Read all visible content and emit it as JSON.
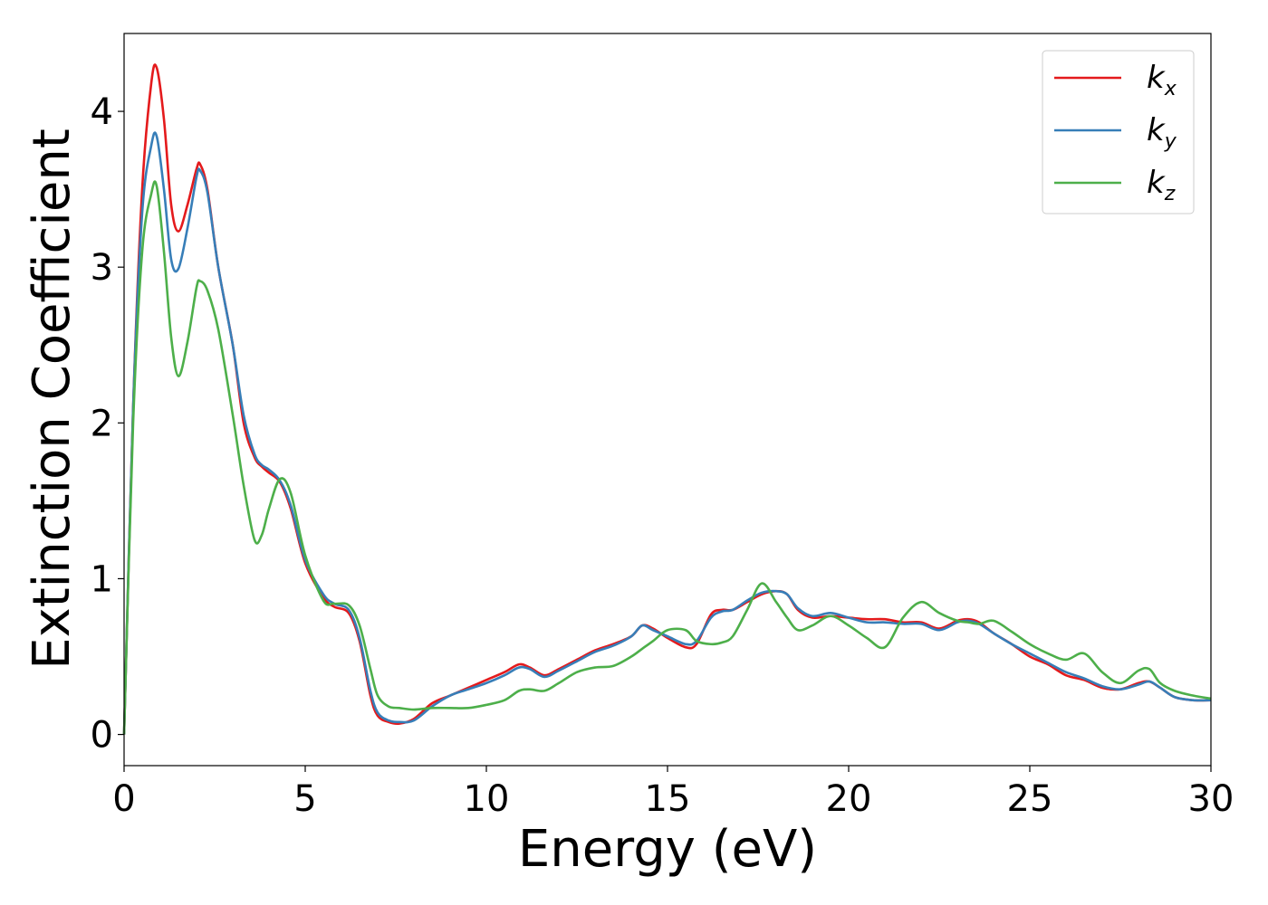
{
  "chart_data": {
    "type": "line",
    "title": "",
    "xlabel": "Energy (eV)",
    "ylabel": "Extinction Coefficient",
    "xlim": [
      0,
      30
    ],
    "ylim": [
      -0.2,
      4.5
    ],
    "xticks": [
      0,
      5,
      10,
      15,
      20,
      25,
      30
    ],
    "yticks": [
      0,
      1,
      2,
      3,
      4
    ],
    "grid": false,
    "legend_position": "top-right",
    "series": [
      {
        "name": "k",
        "subscript": "x",
        "color": "#e41a1c",
        "x": [
          0,
          0.25,
          0.5,
          0.75,
          0.9,
          1.1,
          1.3,
          1.5,
          1.75,
          2.0,
          2.1,
          2.3,
          2.6,
          3.0,
          3.3,
          3.6,
          3.8,
          4.0,
          4.3,
          4.6,
          5.0,
          5.5,
          5.8,
          6.2,
          6.5,
          6.8,
          7.0,
          7.3,
          7.6,
          8.0,
          8.5,
          9.0,
          9.5,
          10.0,
          10.5,
          10.9,
          11.2,
          11.6,
          12.0,
          12.5,
          13.0,
          13.5,
          14.0,
          14.3,
          14.6,
          15.0,
          15.5,
          15.8,
          16.2,
          16.5,
          16.8,
          17.2,
          17.6,
          18.0,
          18.3,
          18.6,
          19.0,
          19.5,
          20.0,
          20.5,
          21.0,
          21.5,
          22.0,
          22.5,
          23.0,
          23.3,
          23.6,
          24.0,
          24.5,
          25.0,
          25.5,
          26.0,
          26.5,
          27.0,
          27.5,
          28.0,
          28.3,
          28.6,
          29.0,
          29.5,
          30.0
        ],
        "y": [
          0.0,
          2.1,
          3.5,
          4.18,
          4.28,
          3.95,
          3.4,
          3.23,
          3.4,
          3.63,
          3.66,
          3.5,
          3.0,
          2.5,
          2.0,
          1.78,
          1.72,
          1.68,
          1.62,
          1.45,
          1.1,
          0.88,
          0.82,
          0.78,
          0.6,
          0.25,
          0.12,
          0.08,
          0.07,
          0.1,
          0.2,
          0.25,
          0.3,
          0.35,
          0.4,
          0.45,
          0.43,
          0.38,
          0.42,
          0.48,
          0.54,
          0.58,
          0.63,
          0.7,
          0.68,
          0.62,
          0.56,
          0.58,
          0.77,
          0.8,
          0.8,
          0.85,
          0.9,
          0.92,
          0.9,
          0.8,
          0.75,
          0.76,
          0.75,
          0.74,
          0.74,
          0.72,
          0.72,
          0.68,
          0.73,
          0.74,
          0.72,
          0.65,
          0.58,
          0.5,
          0.45,
          0.38,
          0.35,
          0.3,
          0.29,
          0.33,
          0.34,
          0.3,
          0.24,
          0.22,
          0.22
        ]
      },
      {
        "name": "k",
        "subscript": "y",
        "color": "#377eb8",
        "x": [
          0,
          0.25,
          0.5,
          0.75,
          0.9,
          1.1,
          1.3,
          1.5,
          1.75,
          2.0,
          2.1,
          2.3,
          2.6,
          3.0,
          3.3,
          3.6,
          3.8,
          4.0,
          4.3,
          4.6,
          5.0,
          5.5,
          5.8,
          6.2,
          6.5,
          6.8,
          7.0,
          7.3,
          7.6,
          8.0,
          8.5,
          9.0,
          9.5,
          10.0,
          10.5,
          10.9,
          11.2,
          11.6,
          12.0,
          12.5,
          13.0,
          13.5,
          14.0,
          14.3,
          14.6,
          15.0,
          15.5,
          15.8,
          16.2,
          16.5,
          16.8,
          17.2,
          17.6,
          18.0,
          18.3,
          18.6,
          19.0,
          19.5,
          20.0,
          20.5,
          21.0,
          21.5,
          22.0,
          22.5,
          23.0,
          23.3,
          23.6,
          24.0,
          24.5,
          25.0,
          25.5,
          26.0,
          26.5,
          27.0,
          27.5,
          28.0,
          28.3,
          28.6,
          29.0,
          29.5,
          30.0
        ],
        "y": [
          0.0,
          2.1,
          3.35,
          3.78,
          3.84,
          3.5,
          3.05,
          2.99,
          3.25,
          3.58,
          3.62,
          3.48,
          3.0,
          2.5,
          2.05,
          1.8,
          1.73,
          1.7,
          1.63,
          1.47,
          1.12,
          0.9,
          0.84,
          0.8,
          0.62,
          0.28,
          0.14,
          0.09,
          0.08,
          0.09,
          0.18,
          0.25,
          0.29,
          0.33,
          0.38,
          0.43,
          0.42,
          0.37,
          0.41,
          0.47,
          0.53,
          0.57,
          0.63,
          0.7,
          0.67,
          0.63,
          0.58,
          0.6,
          0.75,
          0.79,
          0.8,
          0.86,
          0.91,
          0.92,
          0.9,
          0.81,
          0.76,
          0.78,
          0.75,
          0.72,
          0.72,
          0.71,
          0.71,
          0.67,
          0.72,
          0.73,
          0.71,
          0.65,
          0.58,
          0.52,
          0.46,
          0.4,
          0.36,
          0.31,
          0.29,
          0.32,
          0.34,
          0.3,
          0.24,
          0.22,
          0.22
        ]
      },
      {
        "name": "k",
        "subscript": "z",
        "color": "#4daf4a",
        "x": [
          0,
          0.25,
          0.5,
          0.75,
          0.9,
          1.1,
          1.3,
          1.5,
          1.75,
          2.0,
          2.1,
          2.3,
          2.6,
          3.0,
          3.3,
          3.6,
          3.8,
          4.0,
          4.3,
          4.6,
          5.0,
          5.5,
          5.8,
          6.2,
          6.5,
          6.8,
          7.0,
          7.3,
          7.6,
          8.0,
          8.5,
          9.0,
          9.5,
          10.0,
          10.5,
          10.9,
          11.2,
          11.6,
          12.0,
          12.5,
          13.0,
          13.5,
          14.0,
          14.3,
          14.6,
          15.0,
          15.5,
          15.8,
          16.2,
          16.5,
          16.8,
          17.2,
          17.6,
          18.0,
          18.3,
          18.6,
          19.0,
          19.5,
          20.0,
          20.5,
          21.0,
          21.5,
          22.0,
          22.5,
          23.0,
          23.3,
          23.6,
          24.0,
          24.5,
          25.0,
          25.5,
          26.0,
          26.5,
          27.0,
          27.5,
          28.0,
          28.3,
          28.6,
          29.0,
          29.5,
          30.0
        ],
        "y": [
          0.0,
          2.0,
          3.1,
          3.47,
          3.52,
          3.1,
          2.55,
          2.3,
          2.52,
          2.87,
          2.91,
          2.85,
          2.6,
          2.05,
          1.6,
          1.25,
          1.28,
          1.45,
          1.64,
          1.55,
          1.15,
          0.86,
          0.84,
          0.83,
          0.7,
          0.42,
          0.25,
          0.18,
          0.17,
          0.16,
          0.17,
          0.17,
          0.17,
          0.19,
          0.22,
          0.28,
          0.29,
          0.28,
          0.33,
          0.4,
          0.43,
          0.44,
          0.5,
          0.55,
          0.6,
          0.67,
          0.67,
          0.6,
          0.58,
          0.59,
          0.63,
          0.8,
          0.97,
          0.85,
          0.75,
          0.67,
          0.7,
          0.76,
          0.7,
          0.62,
          0.56,
          0.75,
          0.85,
          0.78,
          0.73,
          0.72,
          0.71,
          0.73,
          0.66,
          0.58,
          0.52,
          0.48,
          0.52,
          0.4,
          0.33,
          0.41,
          0.42,
          0.33,
          0.28,
          0.25,
          0.23
        ]
      }
    ]
  }
}
